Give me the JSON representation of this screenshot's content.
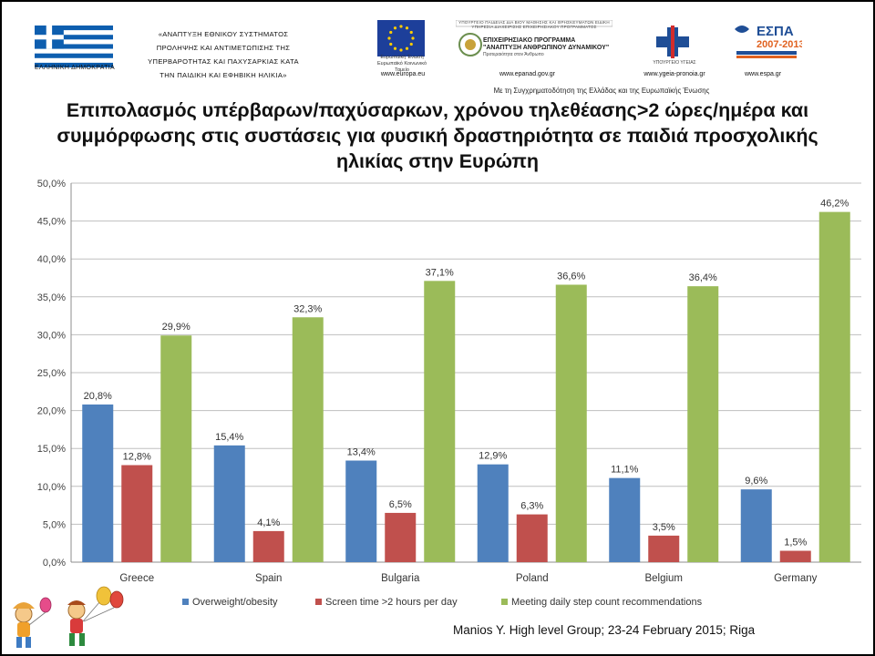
{
  "header": {
    "flag_caption": "ΕΛΛΗΝΙΚΗ ΔΗΜΟΚΡΑΤΙΑ",
    "project_lines": [
      "«ΑΝΑΠΤΥΞΗ ΕΘΝΙΚΟΥ ΣΥΣΤΗΜΑΤΟΣ",
      "ΠΡΟΛΗΨΗΣ ΚΑΙ ΑΝΤΙΜΕΤΩΠΙΣΗΣ ΤΗΣ",
      "ΥΠΕΡΒΑΡΟΤΗΤΑΣ ΚΑΙ ΠΑΧΥΣΑΡΚΙΑΣ ΚΑΤΑ",
      "ΤΗΝ ΠΑΙΔΙΚΗ ΚΑΙ ΕΦΗΒΙΚΗ ΗΛΙΚΙΑ»"
    ],
    "eu_caption": "Ευρωπαϊκή Ένωση Ευρωπαϊκό Κοινωνικό Ταμείο",
    "eu_url": "www.europa.eu",
    "op_top": "ΥΠΟΥΡΓΕΙΟ ΠΑΙΔΕΙΑΣ ΔΙΑ ΒΙΟΥ ΜΑΘΗΣΗΣ ΚΑΙ ΘΡΗΣΚΕΥΜΑΤΩΝ ΕΙΔΙΚΗ ΥΠΗΡΕΣΙΑ ΔΙΑΧΕΙΡΙΣΗΣ ΕΠΙΧΕΙΡΗΣΙΑΚΟΥ ΠΡΟΓΡΑΜΜΑΤΟΣ",
    "op_title_1": "ΕΠΙΧΕΙΡΗΣΙΑΚΟ ΠΡΟΓΡΑΜΜΑ",
    "op_title_2": "\"ΑΝΑΠΤΥΞΗ ΑΝΘΡΩΠΙΝΟΥ ΔΥΝΑΜΙΚΟΥ\"",
    "op_sub": "Προτεραιότητα στον Άνθρωπο",
    "op_url": "www.epanad.gov.gr",
    "moh_caption": "ΥΠΟΥΡΓΕΙΟ ΥΓΕΙΑΣ",
    "moh_url": "www.ygeia-pronoia.gr",
    "espa_text": "ΕΣΠΑ",
    "espa_years": "2007-2013",
    "espa_url": "www.espa.gr",
    "cofund": "Με τη Συγχρηματοδότηση της Ελλάδας και της Ευρωπαϊκής Ένωσης"
  },
  "title_lines": [
    "Επιπολασμός υπέρβαρων/παχύσαρκων, χρόνου τηλεθέασης>2 ώρες/ημέρα και",
    "συμμόρφωσης στις συστάσεις για φυσική δραστηριότητα σε παιδιά προσχολικής",
    "ηλικίας στην Ευρώπη"
  ],
  "chart_data": {
    "type": "bar",
    "title": "Επιπολασμός υπέρβαρων/παχύσαρκων, χρόνου τηλεθέασης>2 ώρες/ημέρα και συμμόρφωσης στις συστάσεις για φυσική δραστηριότητα σε παιδιά προσχολικής ηλικίας στην Ευρώπη",
    "categories": [
      "Greece",
      "Spain",
      "Bulgaria",
      "Poland",
      "Belgium",
      "Germany"
    ],
    "series": [
      {
        "name": "Overweight/obesity",
        "color": "#4f81bd",
        "values": [
          20.8,
          15.4,
          13.4,
          12.9,
          11.1,
          9.6
        ],
        "labels": [
          "20,8%",
          "15,4%",
          "13,4%",
          "12,9%",
          "11,1%",
          "9,6%"
        ]
      },
      {
        "name": "Screen time >2 hours per day",
        "color": "#c0504d",
        "values": [
          12.8,
          4.1,
          6.5,
          6.3,
          3.5,
          1.5
        ],
        "labels": [
          "12,8%",
          "4,1%",
          "6,5%",
          "6,3%",
          "3,5%",
          "1,5%"
        ]
      },
      {
        "name": "Meeting daily step count recommendations",
        "color": "#9bbb59",
        "values": [
          29.9,
          32.3,
          37.1,
          36.6,
          36.4,
          46.2
        ],
        "labels": [
          "29,9%",
          "32,3%",
          "37,1%",
          "36,6%",
          "36,4%",
          "46,2%"
        ]
      }
    ],
    "ylim": [
      0,
      50
    ],
    "yticks": [
      0,
      5,
      10,
      15,
      20,
      25,
      30,
      35,
      40,
      45,
      50
    ],
    "ytick_labels": [
      "0,0%",
      "5,0%",
      "10,0%",
      "15,0%",
      "20,0%",
      "25,0%",
      "30,0%",
      "35,0%",
      "40,0%",
      "45,0%",
      "50,0%"
    ],
    "xlabel": "",
    "ylabel": "",
    "grid": true,
    "legend": "bottom"
  },
  "source": "Manios Y. High level Group; 23-24 February 2015; Riga"
}
